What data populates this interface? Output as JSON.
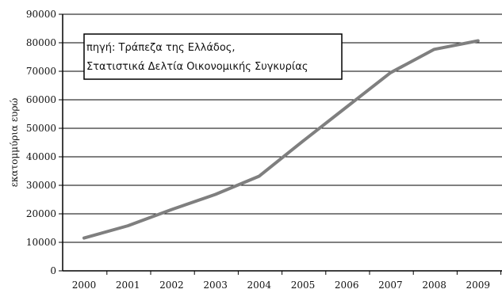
{
  "chart_data": {
    "type": "line",
    "x": [
      "2000",
      "2001",
      "2002",
      "2003",
      "2004",
      "2005",
      "2006",
      "2007",
      "2008",
      "2009"
    ],
    "series": [
      {
        "values": [
          11500,
          15800,
          21500,
          26800,
          33200,
          45500,
          57500,
          69500,
          77700,
          80700
        ]
      }
    ],
    "ylabel": "εκατομμύρια ευρώ",
    "ylim": [
      0,
      90000
    ],
    "yticks": [
      "0",
      "10000",
      "20000",
      "30000",
      "40000",
      "50000",
      "60000",
      "70000",
      "80000",
      "90000"
    ],
    "grid": true,
    "line_color": "#7f7f7f",
    "annotation": {
      "line1": "πηγή: Τράπεζα της Ελλάδος,",
      "line2": "Στατιστικά Δελτία Οικονομικής Συγκυρίας"
    }
  }
}
